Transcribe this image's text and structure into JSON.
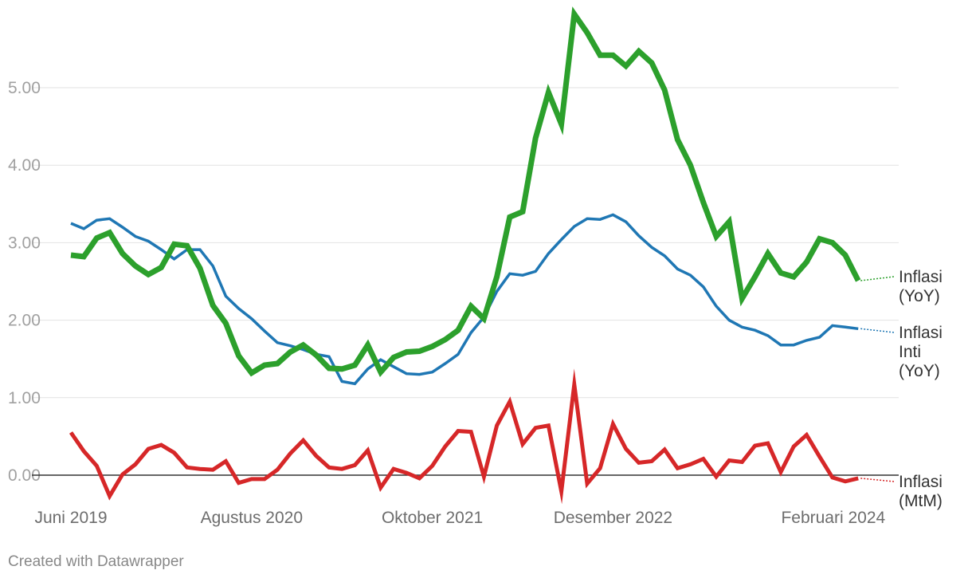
{
  "chart_data": {
    "type": "line",
    "title": "",
    "xlabel": "",
    "ylabel": "",
    "ylim": [
      -0.5,
      6.0
    ],
    "y_ticks": [
      "0.00",
      "1.00",
      "2.00",
      "3.00",
      "4.00",
      "5.00"
    ],
    "y_tick_values": [
      0,
      1,
      2,
      3,
      4,
      5
    ],
    "x_ticks": [
      {
        "label": "Juni 2019",
        "index": 0
      },
      {
        "label": "Agustus 2020",
        "index": 14
      },
      {
        "label": "Oktober 2021",
        "index": 28
      },
      {
        "label": "Desember 2022",
        "index": 42
      },
      {
        "label": "Februari 2024",
        "index": 56
      }
    ],
    "grid": true,
    "legend": "direct labels at line ends (right)",
    "series": [
      {
        "name": "Inflasi (YoY)",
        "label_lines": [
          "Inflasi",
          "(YoY)"
        ],
        "color": "#2ca02c",
        "values": [
          2.84,
          2.82,
          3.06,
          3.13,
          2.86,
          2.7,
          2.59,
          2.68,
          2.98,
          2.96,
          2.67,
          2.19,
          1.96,
          1.54,
          1.32,
          1.42,
          1.44,
          1.59,
          1.68,
          1.55,
          1.38,
          1.37,
          1.42,
          1.68,
          1.33,
          1.52,
          1.59,
          1.6,
          1.66,
          1.75,
          1.87,
          2.18,
          2.02,
          2.56,
          3.33,
          3.4,
          4.35,
          4.94,
          4.53,
          5.95,
          5.71,
          5.42,
          5.42,
          5.28,
          5.47,
          5.32,
          4.97,
          4.33,
          4.0,
          3.52,
          3.08,
          3.27,
          2.28,
          2.56,
          2.86,
          2.61,
          2.56,
          2.75,
          3.05,
          3.0,
          2.84,
          2.51
        ]
      },
      {
        "name": "Inflasi Inti (YoY)",
        "label_lines": [
          "Inflasi",
          "Inti",
          "(YoY)"
        ],
        "color": "#1f77b4",
        "values": [
          3.25,
          3.18,
          3.29,
          3.31,
          3.2,
          3.08,
          3.02,
          2.91,
          2.79,
          2.91,
          2.91,
          2.7,
          2.31,
          2.15,
          2.02,
          1.86,
          1.71,
          1.67,
          1.62,
          1.56,
          1.53,
          1.21,
          1.18,
          1.37,
          1.49,
          1.4,
          1.31,
          1.3,
          1.33,
          1.44,
          1.56,
          1.84,
          2.04,
          2.37,
          2.6,
          2.58,
          2.63,
          2.86,
          3.04,
          3.21,
          3.31,
          3.3,
          3.36,
          3.27,
          3.09,
          2.94,
          2.83,
          2.66,
          2.58,
          2.43,
          2.18,
          2.0,
          1.91,
          1.87,
          1.8,
          1.68,
          1.68,
          1.74,
          1.78,
          1.93,
          1.91,
          1.89
        ]
      },
      {
        "name": "Inflasi (MtM)",
        "label_lines": [
          "Inflasi",
          "(MtM)"
        ],
        "color": "#d62728",
        "values": [
          0.55,
          0.31,
          0.12,
          -0.27,
          0.01,
          0.14,
          0.34,
          0.39,
          0.29,
          0.1,
          0.08,
          0.07,
          0.18,
          -0.1,
          -0.05,
          -0.05,
          0.07,
          0.28,
          0.45,
          0.25,
          0.1,
          0.08,
          0.13,
          0.32,
          -0.16,
          0.08,
          0.03,
          -0.04,
          0.12,
          0.37,
          0.57,
          0.56,
          -0.02,
          0.64,
          0.95,
          0.4,
          0.61,
          0.64,
          -0.21,
          1.17,
          -0.11,
          0.09,
          0.66,
          0.34,
          0.16,
          0.18,
          0.33,
          0.09,
          0.14,
          0.21,
          -0.02,
          0.19,
          0.17,
          0.38,
          0.41,
          0.04,
          0.37,
          0.52,
          0.24,
          -0.03,
          -0.08,
          -0.04
        ]
      }
    ]
  },
  "footer": {
    "credit": "Created with Datawrapper"
  }
}
